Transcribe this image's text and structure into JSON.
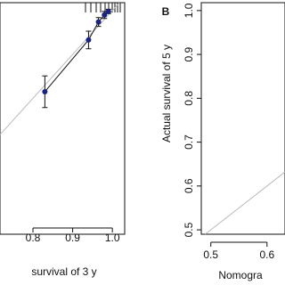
{
  "chart_data": [
    {
      "type": "calibration",
      "x_label": "survival of 3 y",
      "x": [
        0.83,
        0.94,
        0.965,
        0.98,
        0.99
      ],
      "values": [
        0.815,
        0.933,
        0.974,
        0.99,
        0.998
      ],
      "errors": [
        0.036,
        0.02,
        0.01,
        0.008,
        0.005
      ],
      "color": "#1a237e",
      "xlim": [
        0.717,
        1.031
      ],
      "ylim": [
        0.49,
        1.018
      ],
      "xticks": [
        0.8,
        0.9,
        {
          "value": 1,
          "label": "1.0"
        }
      ]
    },
    {
      "type": "calibration",
      "panel_label": "B",
      "x_label": "Nomogra",
      "y_label": "Actual survival of 5 y",
      "x": [],
      "values": [],
      "errors": [],
      "xlim": [
        0.483,
        0.632
      ],
      "ylim": [
        0.49,
        1.018
      ],
      "xticks": [
        0.5,
        0.6
      ],
      "yticks": [
        0.5,
        0.6,
        0.7,
        0.8,
        0.9,
        {
          "value": 1,
          "label": "1.0"
        }
      ]
    }
  ]
}
